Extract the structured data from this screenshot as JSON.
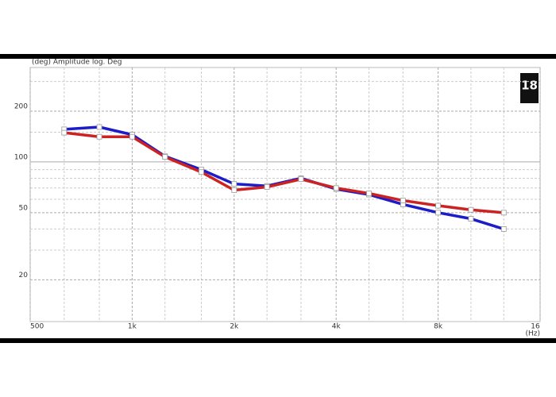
{
  "chart_data": {
    "type": "line",
    "title": "(deg)  Amplitude log. Deg",
    "x_label": "(Hz)",
    "logo": "18",
    "x": [
      630,
      800,
      1000,
      1250,
      1600,
      2000,
      2500,
      3150,
      4000,
      5000,
      6300,
      8000,
      10000,
      12500
    ],
    "series": [
      {
        "name": "Blue",
        "color": "#1c1cc8",
        "values": [
          156,
          161,
          145,
          108,
          90,
          74,
          72,
          80,
          69,
          64,
          56,
          50,
          46,
          40
        ]
      },
      {
        "name": "Red",
        "color": "#cc2222",
        "values": [
          149,
          141,
          141,
          107,
          87,
          68,
          71,
          79,
          70,
          65,
          59,
          55,
          52,
          50
        ]
      }
    ],
    "xlim": [
      500,
      16000
    ],
    "ylim": [
      11.3,
      363
    ],
    "xlog": true,
    "ylog": true,
    "xticks": [
      500,
      {
        "value": 1000,
        "label": "1k"
      },
      {
        "value": 2000,
        "label": "2k"
      },
      {
        "value": 4000,
        "label": "4k"
      },
      {
        "value": 8000,
        "label": "8k"
      },
      {
        "value": 16000,
        "label": "16"
      }
    ],
    "yticks": [
      20,
      50,
      100,
      200
    ],
    "xgrid": [
      630,
      800,
      1250,
      1600,
      2500,
      3150,
      5000,
      6300,
      10000,
      12500
    ],
    "ygrid": [
      30,
      40,
      60,
      70,
      80,
      90,
      150,
      300
    ],
    "grid": true
  }
}
